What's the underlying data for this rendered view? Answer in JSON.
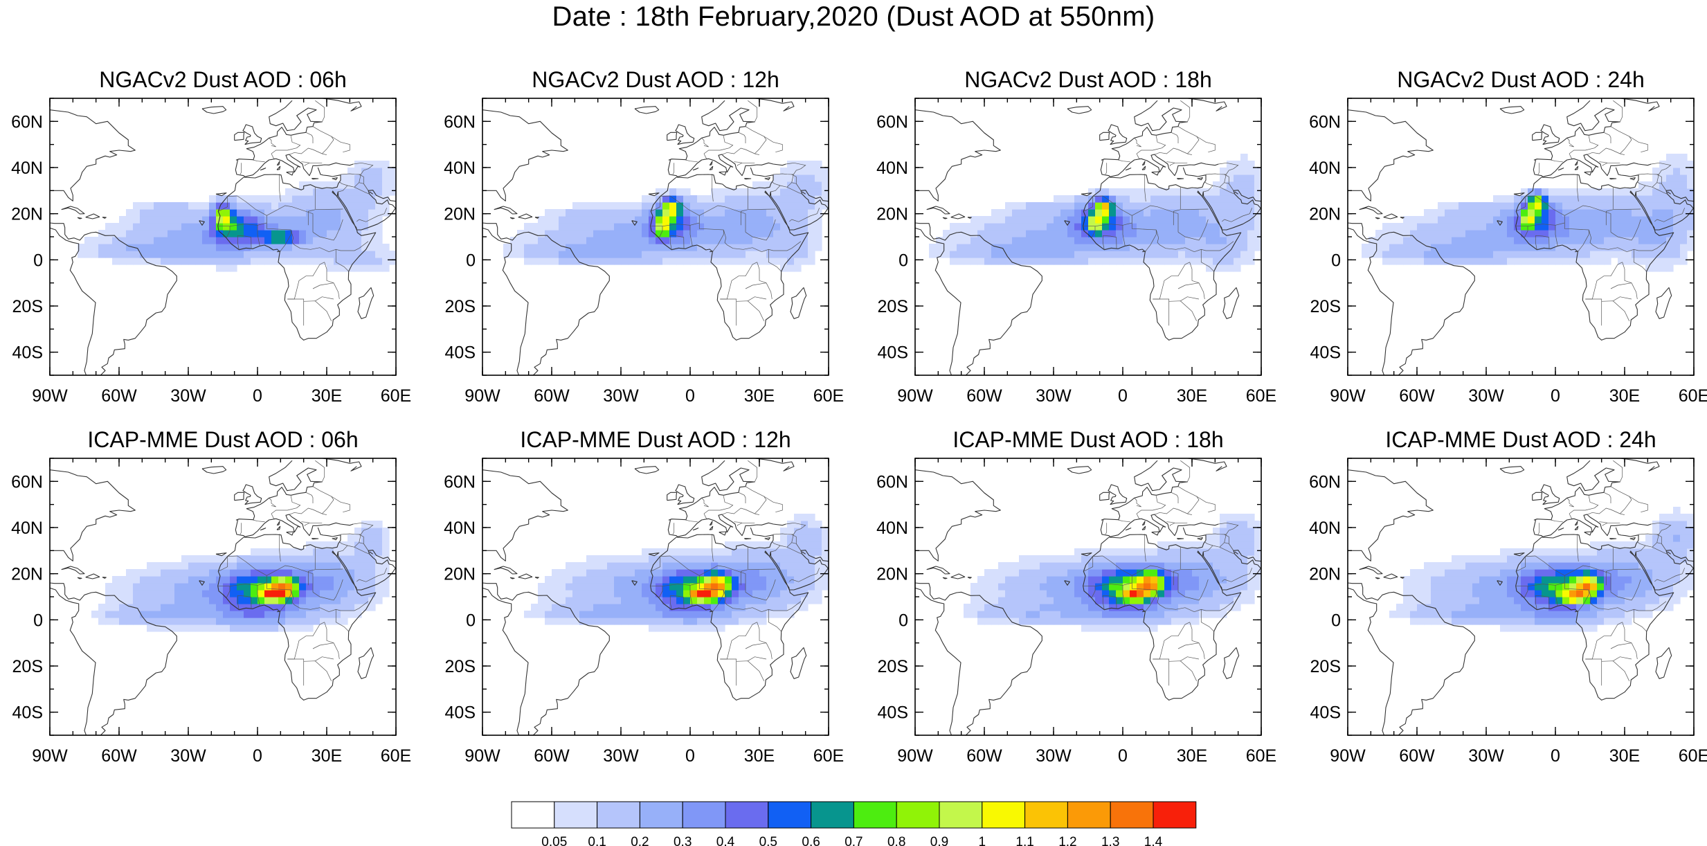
{
  "title": "Date : 18th February,2020 (Dust AOD at 550nm)",
  "panels": [
    {
      "title": "NGACv2 Dust AOD : 06h",
      "model": "NGACv2",
      "hour": "06h"
    },
    {
      "title": "NGACv2 Dust AOD : 12h",
      "model": "NGACv2",
      "hour": "12h"
    },
    {
      "title": "NGACv2 Dust AOD : 18h",
      "model": "NGACv2",
      "hour": "18h"
    },
    {
      "title": "NGACv2 Dust AOD : 24h",
      "model": "NGACv2",
      "hour": "24h"
    },
    {
      "title": "ICAP-MME Dust AOD : 06h",
      "model": "ICAP-MME",
      "hour": "06h"
    },
    {
      "title": "ICAP-MME Dust AOD : 12h",
      "model": "ICAP-MME",
      "hour": "12h"
    },
    {
      "title": "ICAP-MME Dust AOD : 18h",
      "model": "ICAP-MME",
      "hour": "18h"
    },
    {
      "title": "ICAP-MME Dust AOD : 24h",
      "model": "ICAP-MME",
      "hour": "24h"
    }
  ],
  "map": {
    "lon_range": [
      -90,
      60
    ],
    "lat_range": [
      -50,
      70
    ],
    "lon_ticks": [
      {
        "value": -90,
        "label": "90W"
      },
      {
        "value": -60,
        "label": "60W"
      },
      {
        "value": -30,
        "label": "30W"
      },
      {
        "value": 0,
        "label": "0"
      },
      {
        "value": 30,
        "label": "30E"
      },
      {
        "value": 60,
        "label": "60E"
      }
    ],
    "lat_ticks": [
      {
        "value": 60,
        "label": "60N"
      },
      {
        "value": 40,
        "label": "40N"
      },
      {
        "value": 20,
        "label": "20N"
      },
      {
        "value": 0,
        "label": "0"
      },
      {
        "value": -20,
        "label": "20S"
      },
      {
        "value": -40,
        "label": "40S"
      }
    ]
  },
  "colorbar": {
    "colors": [
      "#ffffff",
      "#d6dffd",
      "#b5c5fb",
      "#97b0f9",
      "#8097f7",
      "#6a6cef",
      "#1160f4",
      "#07958e",
      "#4ded10",
      "#90f307",
      "#c3f74b",
      "#f9f901",
      "#fbc305",
      "#fb9a07",
      "#f8730a",
      "#f8200a"
    ],
    "labels": [
      "0.05",
      "0.1",
      "0.2",
      "0.3",
      "0.4",
      "0.5",
      "0.6",
      "0.7",
      "0.8",
      "0.9",
      "1",
      "1.1",
      "1.2",
      "1.3",
      "1.4"
    ]
  }
}
